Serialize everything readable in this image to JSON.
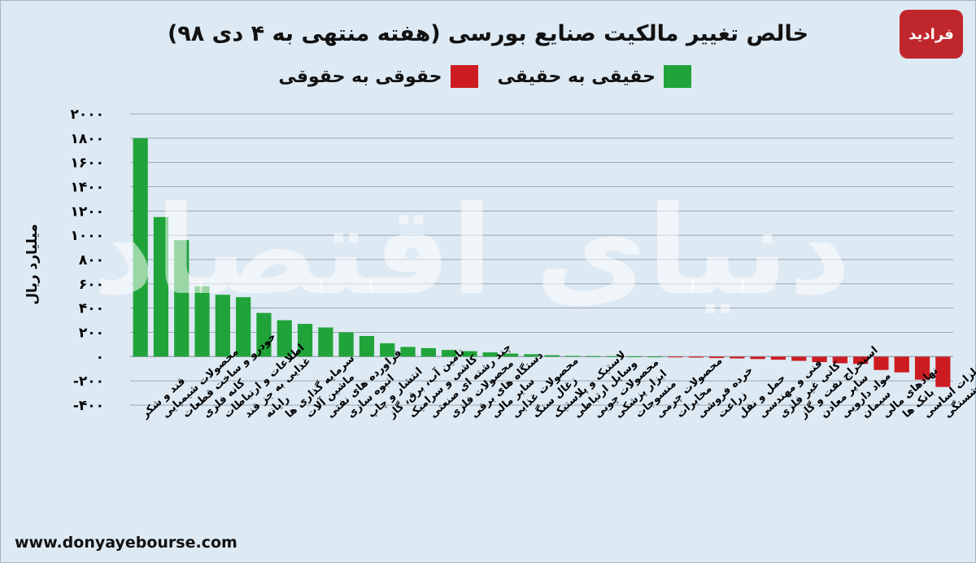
{
  "title": "خالص تغییر مالکیت صنایع بورسی (هفته منتهی به ۴ دی ۹۸)",
  "legend": {
    "green_label": "حقیقی به حقیقی",
    "red_label": "حقوقی به حقوقی"
  },
  "logo_text": "فرادید",
  "footer_url": "www.donyayebourse.com",
  "watermark_text": "دنیای اقتصاد",
  "colors": {
    "positive": "#20a43a",
    "negative": "#cc1c22",
    "background": "#dde9f3",
    "grid": "#9aa6b2"
  },
  "chart_data": {
    "type": "bar",
    "ylabel": "میلیارد ریال",
    "ylim": [
      -400,
      2000
    ],
    "yticks": [
      {
        "value": 2000,
        "label": "۲۰۰۰"
      },
      {
        "value": 1800,
        "label": "۱۸۰۰"
      },
      {
        "value": 1600,
        "label": "۱۶۰۰"
      },
      {
        "value": 1400,
        "label": "۱۴۰۰"
      },
      {
        "value": 1200,
        "label": "۱۲۰۰"
      },
      {
        "value": 1000,
        "label": "۱۰۰۰"
      },
      {
        "value": 800,
        "label": "۸۰۰"
      },
      {
        "value": 600,
        "label": "۶۰۰"
      },
      {
        "value": 400,
        "label": "۴۰۰"
      },
      {
        "value": 200,
        "label": "۲۰۰"
      },
      {
        "value": 0,
        "label": "۰"
      },
      {
        "value": -200,
        "label": "-۲۰۰"
      },
      {
        "value": -400,
        "label": "-۴۰۰"
      }
    ],
    "grid": true,
    "categories": [
      "قند و شکر",
      "محصولات شیمیایی",
      "خودرو و ساخت قطعات",
      "کانه فلزی",
      "اطلاعات و ارتباطات",
      "غذایی به جز قند",
      "رایانه",
      "سرمایه گذاری ها",
      "ماشین آلات",
      "فراورده های نفتی",
      "انبوه سازی",
      "انتشار و چاپ",
      "تامین آب، برق، گاز",
      "کاشی و سرامیک",
      "چند رشته ای صنعتی",
      "محصولات فلزی",
      "دستگاه های برقی",
      "سایر مالی",
      "محصولات غذایی",
      "زغال سنگ",
      "لاستیک و پلاستیک",
      "وسایل ارتباطی",
      "محصولات چوبی",
      "ابزار پزشکی",
      "منسوجات",
      "محصولات چرمی",
      "مخابرات",
      "خرده فروشی",
      "زراعت",
      "حمل و نقل",
      "فنی و مهندسی",
      "کانی غیر فلزی",
      "استخراج نفت و گاز",
      "سایر معادن",
      "مواد دارویی",
      "سیمان",
      "نهادهای مالی",
      "بانک ها",
      "فلزات اساسی",
      "بیمه و صندوق بازنشستگی"
    ],
    "values": [
      1800,
      1150,
      960,
      580,
      510,
      490,
      360,
      300,
      270,
      240,
      200,
      170,
      110,
      80,
      70,
      55,
      45,
      35,
      25,
      20,
      12,
      6,
      4,
      3,
      2,
      1,
      -5,
      -8,
      -12,
      -15,
      -20,
      -25,
      -35,
      -45,
      -55,
      -60,
      -110,
      -130,
      -190,
      -250
    ]
  }
}
